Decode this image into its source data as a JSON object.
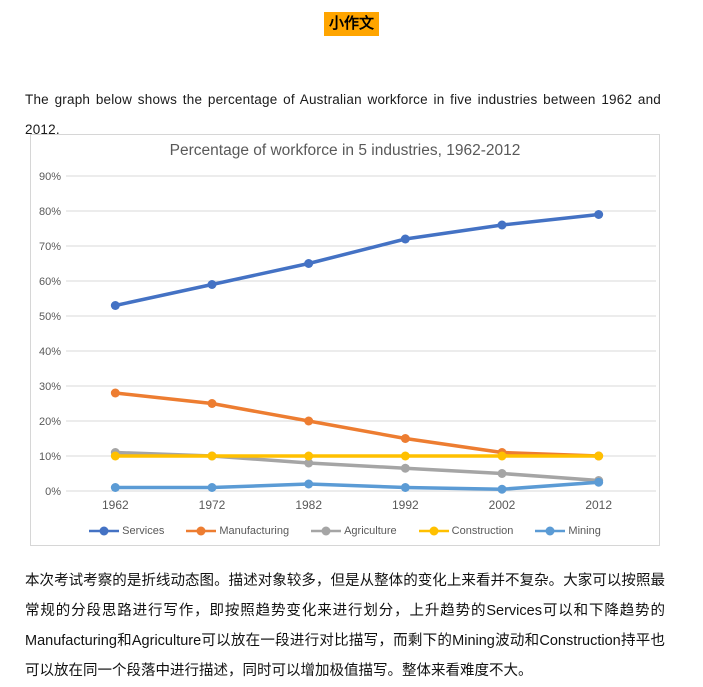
{
  "page": {
    "doc_title": "小作文",
    "highlight_color": "#FFA500",
    "intro_text": "The graph below shows the percentage of Australian workforce in five industries between 1962 and 2012.",
    "analysis_text": "本次考试考察的是折线动态图。描述对象较多，但是从整体的变化上来看并不复杂。大家可以按照最常规的分段思路进行写作，即按照趋势变化来进行划分，上升趋势的Services可以和下降趋势的Manufacturing和Agriculture可以放在一段进行对比描写，而剩下的Mining波动和Construction持平也可以放在同一个段落中进行描述，同时可以增加极值描写。整体来看难度不大。"
  },
  "chart_data": {
    "type": "line",
    "title": "Percentage of workforce in 5 industries, 1962-2012",
    "categories": [
      "1962",
      "1972",
      "1982",
      "1992",
      "2002",
      "2012"
    ],
    "series": [
      {
        "name": "Services",
        "color": "#4472C4",
        "values": [
          53,
          59,
          65,
          72,
          76,
          79
        ]
      },
      {
        "name": "Manufacturing",
        "color": "#ED7D31",
        "values": [
          28,
          25,
          20,
          15,
          11,
          10
        ]
      },
      {
        "name": "Agriculture",
        "color": "#A5A5A5",
        "values": [
          11,
          10,
          8,
          6.5,
          5,
          3
        ]
      },
      {
        "name": "Construction",
        "color": "#FFC000",
        "values": [
          10,
          10,
          10,
          10,
          10,
          10
        ]
      },
      {
        "name": "Mining",
        "color": "#5B9BD5",
        "values": [
          1,
          1,
          2,
          1,
          0.5,
          2.5
        ]
      }
    ],
    "ylim": [
      0,
      90
    ],
    "ytick_step": 10,
    "ytick_suffix": "%",
    "grid": true,
    "gridline_color": "#D9D9D9",
    "tick_label_color": "#595959",
    "legend_position": "bottom"
  }
}
